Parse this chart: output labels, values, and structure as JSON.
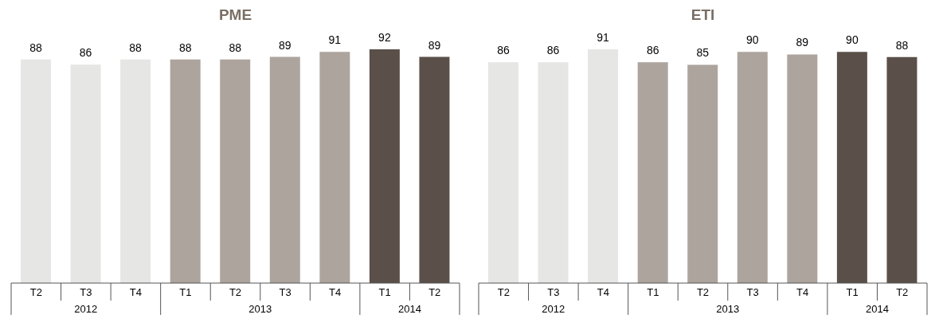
{
  "chart_data": [
    {
      "type": "bar",
      "title": "PME",
      "categories": [
        "T2",
        "T3",
        "T4",
        "T1",
        "T2",
        "T3",
        "T4",
        "T1",
        "T2"
      ],
      "values": [
        88,
        86,
        88,
        88,
        88,
        89,
        91,
        92,
        89
      ],
      "colors": [
        "#e6e6e4",
        "#e6e6e4",
        "#e6e6e4",
        "#ada49d",
        "#ada49d",
        "#ada49d",
        "#ada49d",
        "#5a5049",
        "#5a5049"
      ],
      "data_labels": true,
      "grid": false,
      "legend": false,
      "annotations": [
        "2012",
        "2013",
        "2014"
      ]
    },
    {
      "type": "bar",
      "title": "ETI",
      "categories": [
        "T2",
        "T3",
        "T4",
        "T1",
        "T2",
        "T3",
        "T4",
        "T1",
        "T2"
      ],
      "values": [
        86,
        86,
        91,
        86,
        85,
        90,
        89,
        90,
        88
      ],
      "colors": [
        "#e6e6e4",
        "#e6e6e4",
        "#e6e6e4",
        "#ada49d",
        "#ada49d",
        "#ada49d",
        "#ada49d",
        "#5a5049",
        "#5a5049"
      ],
      "data_labels": true,
      "grid": false,
      "legend": false,
      "annotations": [
        "2012",
        "2013",
        "2014"
      ]
    }
  ]
}
